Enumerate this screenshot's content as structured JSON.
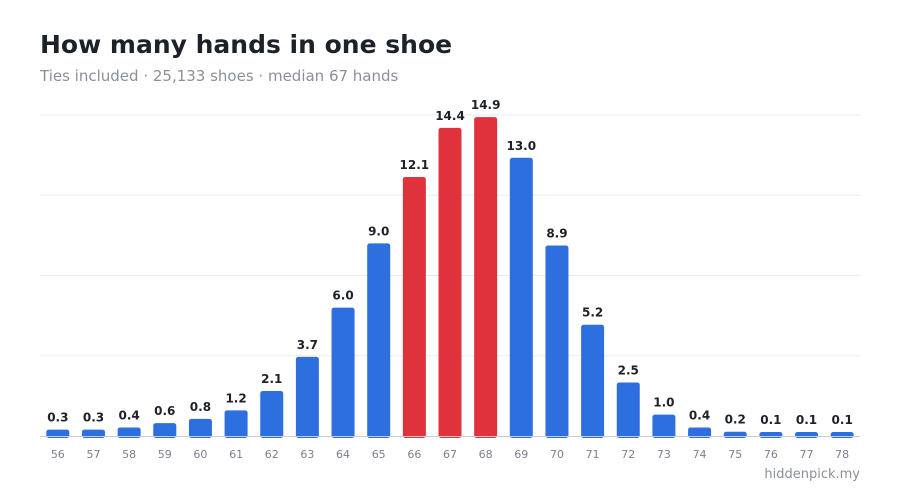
{
  "page": {
    "title": "How many hands in one shoe",
    "subtitle": "Ties included · 25,133 shoes · median 67 hands",
    "watermark": "hiddenpick.my"
  },
  "colors": {
    "default_bar": "#2e6fe0",
    "highlight_bar": "#e0323c",
    "grid": "#e9ebee",
    "baseline": "#c9cdd3"
  },
  "chart_data": {
    "type": "bar",
    "title": "How many hands in one shoe",
    "subtitle": "Ties included · 25,133 shoes · median 67 hands",
    "xlabel": "",
    "ylabel": "",
    "categories": [
      "56",
      "57",
      "58",
      "59",
      "60",
      "61",
      "62",
      "63",
      "64",
      "65",
      "66",
      "67",
      "68",
      "69",
      "70",
      "71",
      "72",
      "73",
      "74",
      "75",
      "76",
      "77",
      "78"
    ],
    "values": [
      0.3,
      0.3,
      0.4,
      0.6,
      0.8,
      1.2,
      2.1,
      3.7,
      6.0,
      9.0,
      12.1,
      14.4,
      14.9,
      13.0,
      8.9,
      5.2,
      2.5,
      1.0,
      0.4,
      0.2,
      0.1,
      0.1,
      0.1
    ],
    "value_labels": [
      "0.3",
      "0.3",
      "0.4",
      "0.6",
      "0.8",
      "1.2",
      "2.1",
      "3.7",
      "6.0",
      "9.0",
      "12.1",
      "14.4",
      "14.9",
      "13.0",
      "8.9",
      "5.2",
      "2.5",
      "1.0",
      "0.4",
      "0.2",
      "0.1",
      "0.1",
      "0.1"
    ],
    "highlighted_categories": [
      "66",
      "67",
      "68"
    ],
    "ylim": [
      0,
      15
    ],
    "grid": true,
    "legend": "none"
  }
}
